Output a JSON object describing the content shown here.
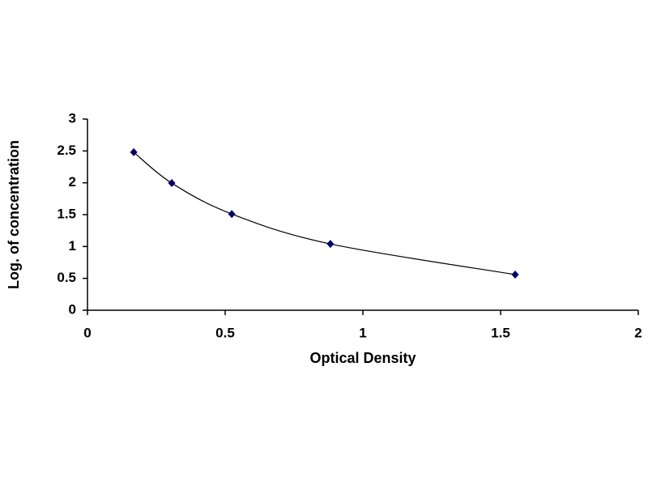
{
  "chart_data": {
    "type": "scatter",
    "x_label": "Optical Density",
    "y_label": "Log. of concentration",
    "series": [
      {
        "color": "#000066",
        "x": [
          0.168,
          0.306,
          0.524,
          0.882,
          1.553
        ],
        "values": [
          2.48,
          1.995,
          1.51,
          1.04,
          0.56
        ]
      }
    ],
    "xlim": [
      0,
      2
    ],
    "xticks": [
      0,
      0.5,
      1,
      1.5,
      2
    ],
    "ylim": [
      0,
      3
    ],
    "yticks": [
      0,
      0.5,
      1,
      1.5,
      2,
      2.5,
      3
    ],
    "trendline": true,
    "grid": false
  }
}
